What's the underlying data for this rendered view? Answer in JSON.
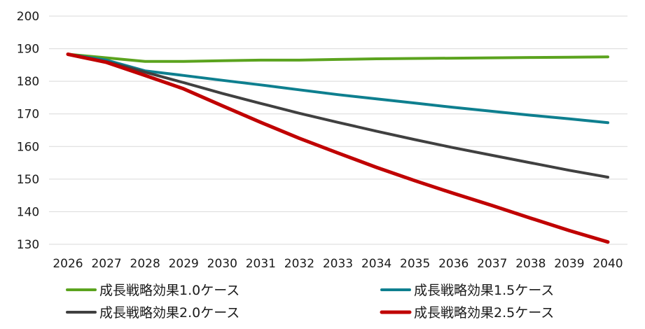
{
  "chart_data": {
    "type": "line",
    "x": [
      "2026",
      "2027",
      "2028",
      "2029",
      "2030",
      "2031",
      "2032",
      "2033",
      "2034",
      "2035",
      "2036",
      "2037",
      "2038",
      "2039",
      "2040"
    ],
    "ylim": [
      130,
      200
    ],
    "yticks": [
      "130",
      "140",
      "150",
      "160",
      "170",
      "180",
      "190",
      "200"
    ],
    "grid": true,
    "legend_position": "bottom",
    "series": [
      {
        "name": "成長戦略効果1.0ケース",
        "color": "#5BA31E",
        "values": [
          188.3,
          187.2,
          186.1,
          186.1,
          186.3,
          186.5,
          186.5,
          186.7,
          186.9,
          187.0,
          187.1,
          187.2,
          187.3,
          187.4,
          187.5
        ]
      },
      {
        "name": "成長戦略効果1.5ケース",
        "color": "#0E7F8F",
        "values": [
          188.3,
          186.5,
          183.2,
          181.8,
          180.3,
          178.9,
          177.4,
          175.9,
          174.6,
          173.3,
          172.0,
          170.8,
          169.6,
          168.5,
          167.3
        ]
      },
      {
        "name": "成長戦略効果2.0ケース",
        "color": "#404040",
        "values": [
          188.3,
          186.0,
          182.8,
          179.6,
          176.3,
          173.2,
          170.2,
          167.4,
          164.7,
          162.1,
          159.6,
          157.3,
          155.0,
          152.7,
          150.6
        ]
      },
      {
        "name": "成長戦略効果2.5ケース",
        "color": "#C00000",
        "values": [
          188.3,
          185.8,
          181.8,
          177.7,
          172.5,
          167.4,
          162.5,
          158.0,
          153.6,
          149.5,
          145.6,
          141.9,
          138.0,
          134.2,
          130.7
        ]
      }
    ]
  }
}
